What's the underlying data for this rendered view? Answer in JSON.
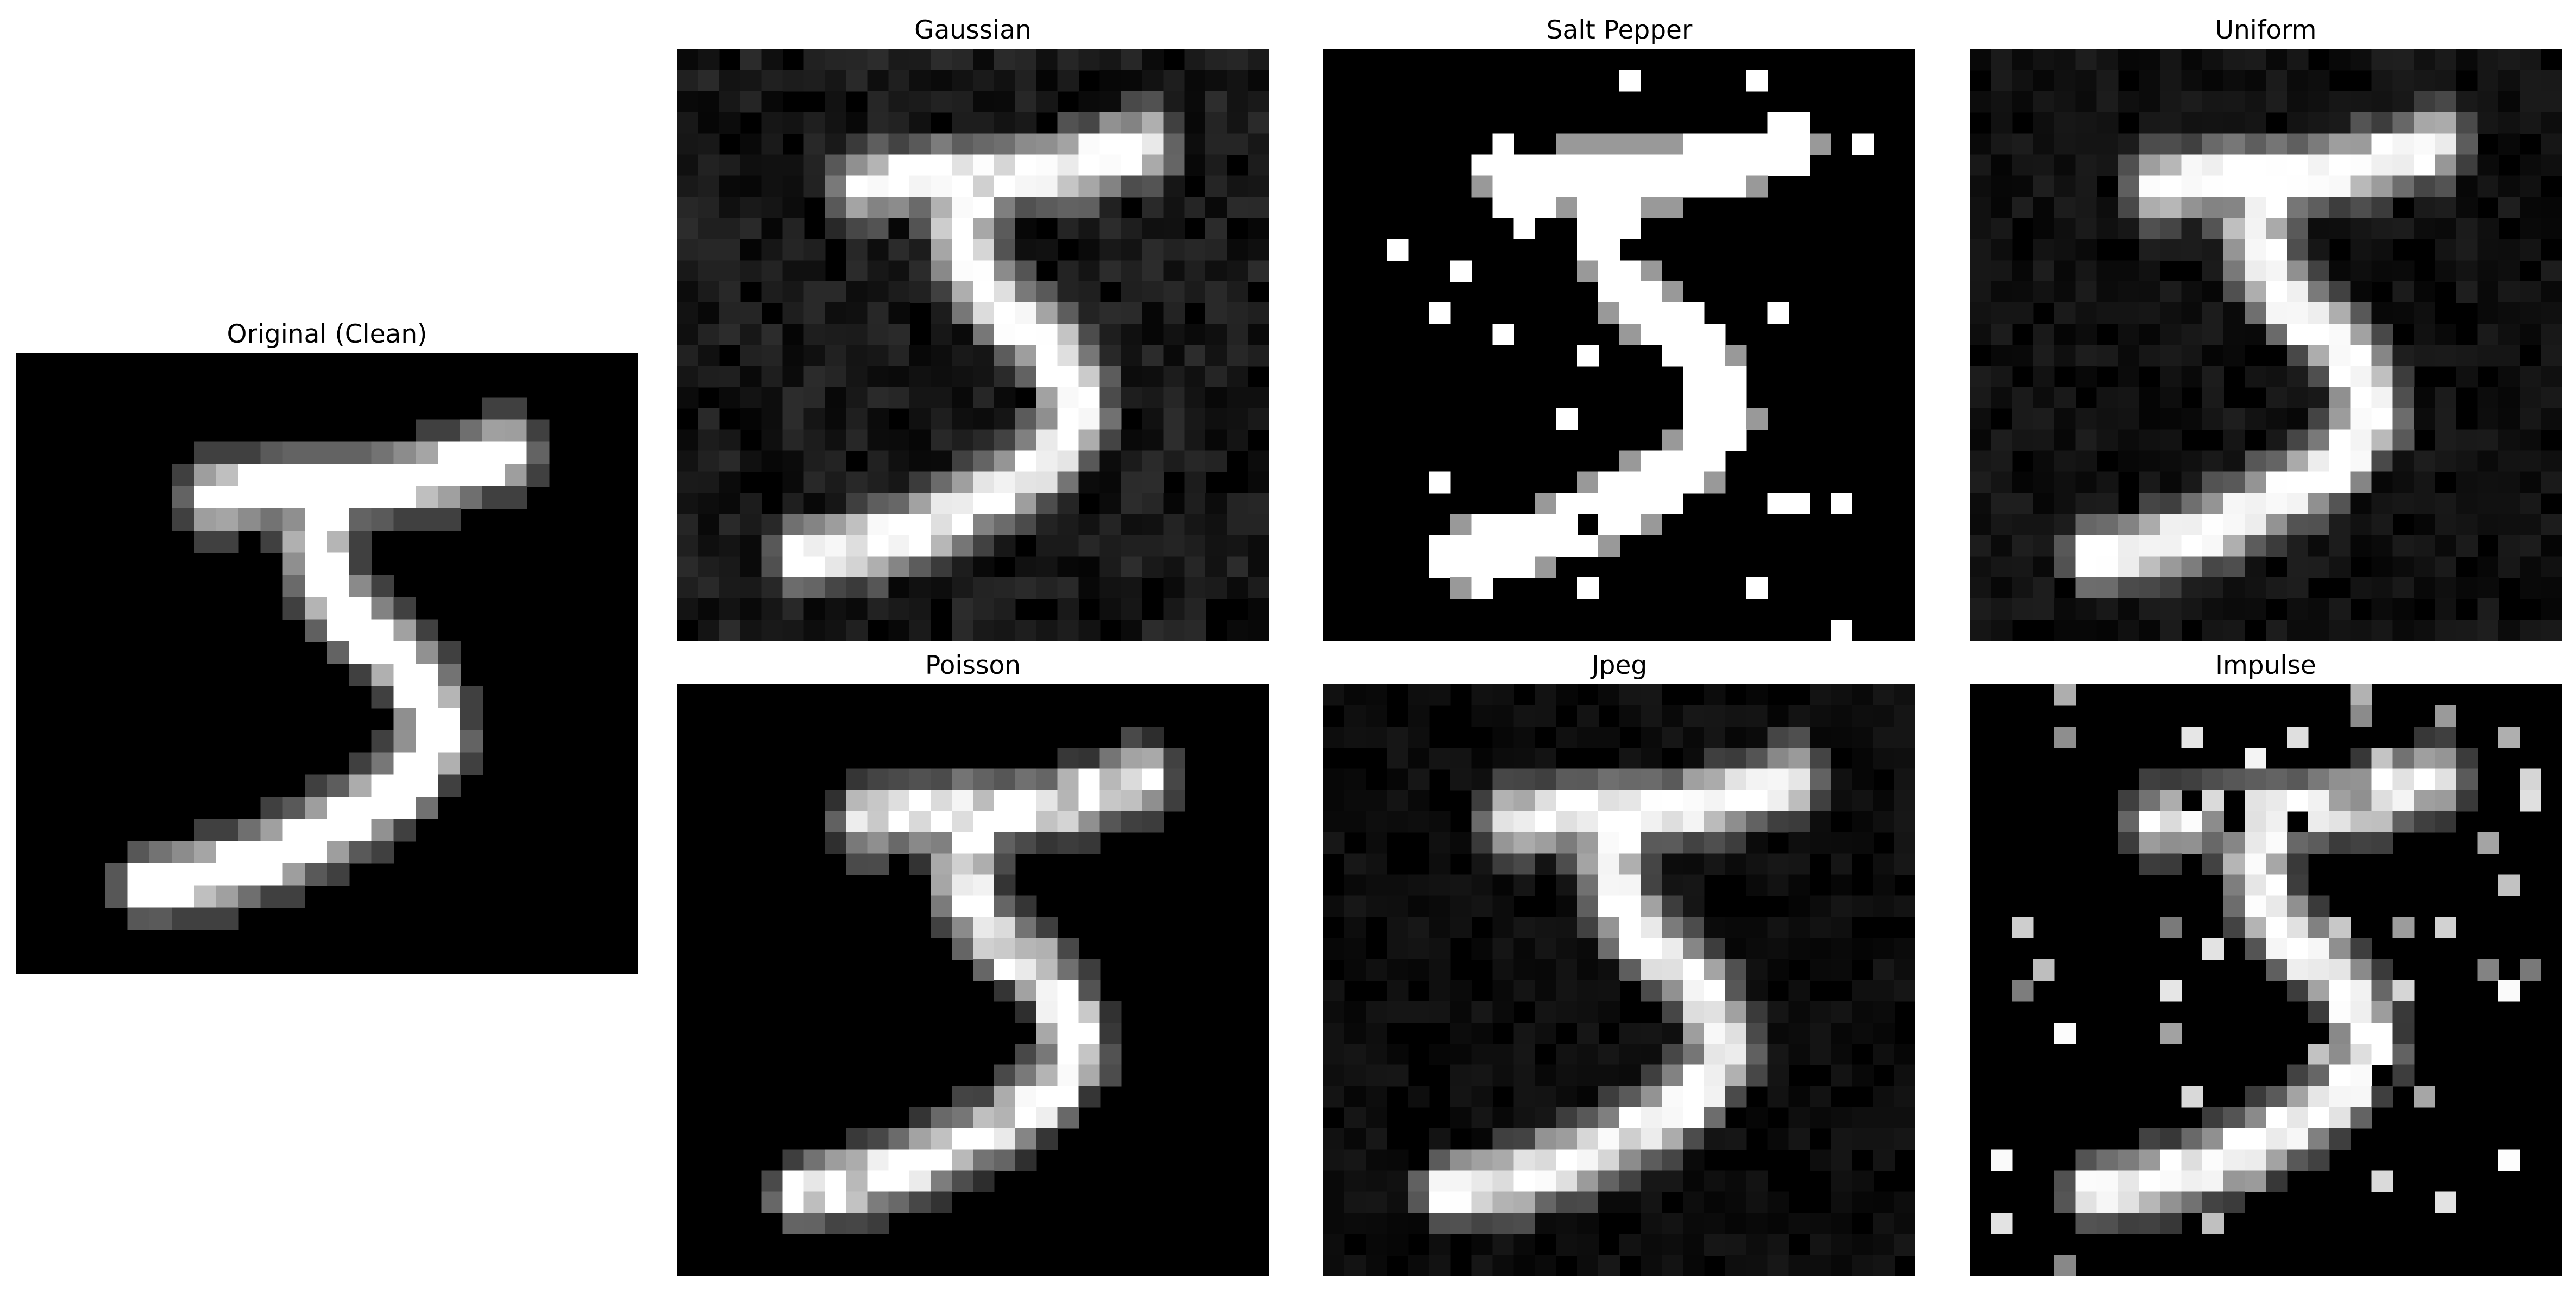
{
  "figure": {
    "panels": [
      {
        "id": "original",
        "title": "Original (Clean)",
        "noise": "none"
      },
      {
        "id": "gaussian",
        "title": "Gaussian",
        "noise": "gaussian"
      },
      {
        "id": "salt",
        "title": "Salt Pepper",
        "noise": "salt"
      },
      {
        "id": "uniform",
        "title": "Uniform",
        "noise": "uniform"
      },
      {
        "id": "poisson",
        "title": "Poisson",
        "noise": "poisson"
      },
      {
        "id": "jpeg",
        "title": "Jpeg",
        "noise": "jpeg"
      },
      {
        "id": "impulse",
        "title": "Impulse",
        "noise": "impulse"
      }
    ],
    "colormap": "gray",
    "image_grid": 28
  }
}
